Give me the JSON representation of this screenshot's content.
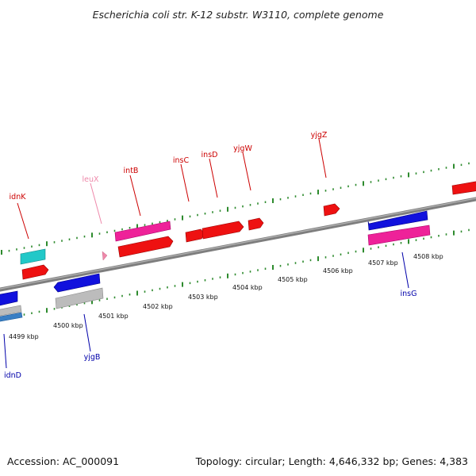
{
  "title": "Escherichia coli str. K-12 substr. W3110, complete genome",
  "footer": {
    "accession": "Accession: AC_000091",
    "topology": "Topology: circular; Length: 4,646,332 bp; Genes: 4,383"
  },
  "colors": {
    "backbone": "#8a8a8a",
    "ticks": "#2e8b2e",
    "gene_red": "#ee1111",
    "gene_pink": "#ee2299",
    "gene_blue": "#1111dd",
    "gene_cyan": "#22c8c8",
    "gene_gray": "#bcbcbc",
    "gene_steel": "#3a7fc4",
    "label_red": "#cc0000",
    "label_blue": "#0000aa",
    "label_pink": "#ee88aa"
  },
  "ruler_labels": [
    "4499 kbp",
    "4500 kbp",
    "4501 kbp",
    "4502 kbp",
    "4503 kbp",
    "4504 kbp",
    "4505 kbp",
    "4506 kbp",
    "4507 kbp",
    "4508 kbp"
  ],
  "gene_labels_top": [
    {
      "name": "idnK",
      "color": "red"
    },
    {
      "name": "leuX",
      "color": "pink"
    },
    {
      "name": "intB",
      "color": "red"
    },
    {
      "name": "insC",
      "color": "red"
    },
    {
      "name": "insD",
      "color": "red"
    },
    {
      "name": "yjgW",
      "color": "red"
    },
    {
      "name": "yjgZ",
      "color": "red"
    }
  ],
  "gene_labels_bottom": [
    {
      "name": "idnD",
      "color": "blue"
    },
    {
      "name": "yjgB",
      "color": "blue"
    },
    {
      "name": "insG",
      "color": "blue"
    }
  ]
}
